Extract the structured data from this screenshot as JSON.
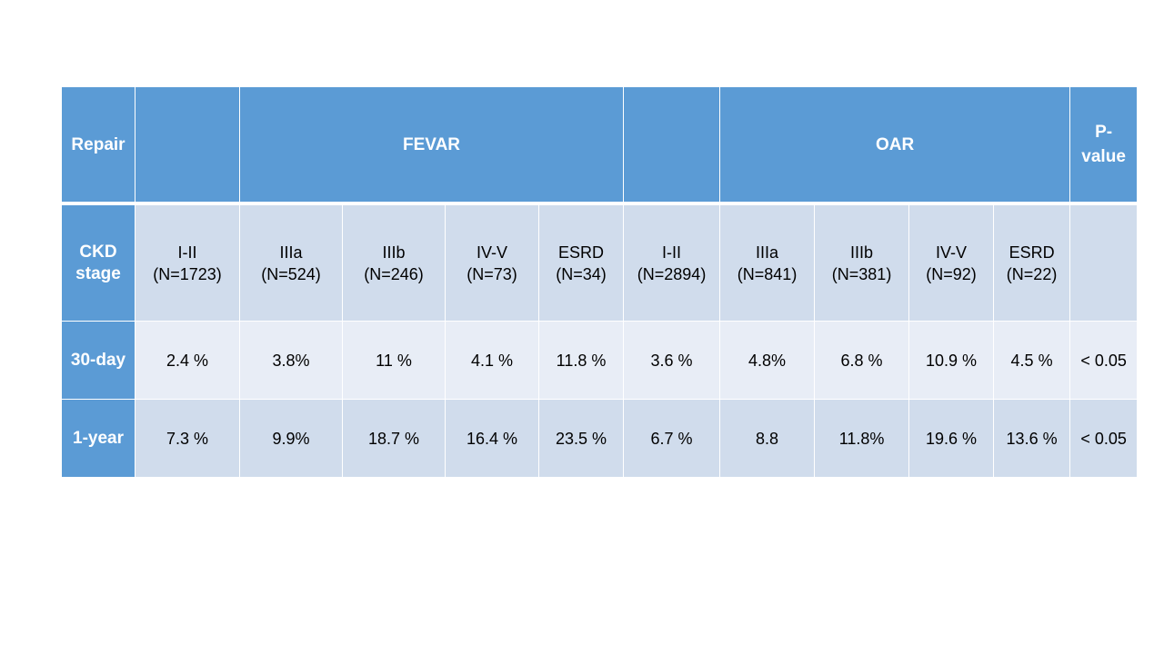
{
  "header": {
    "repair_label": "Repair",
    "group_fevar": "FEVAR",
    "group_oar": "OAR",
    "pvalue_line1": "P-",
    "pvalue_line2": "value"
  },
  "stage_row": {
    "label_line1": "CKD",
    "label_line2": "stage",
    "stages": [
      {
        "stage": "I-II",
        "n": "(N=1723)"
      },
      {
        "stage": "IIIa",
        "n": "(N=524)"
      },
      {
        "stage": "IIIb",
        "n": "(N=246)"
      },
      {
        "stage": "IV-V",
        "n": "(N=73)"
      },
      {
        "stage": "ESRD",
        "n": "(N=34)"
      },
      {
        "stage": "I-II",
        "n": "(N=2894)"
      },
      {
        "stage": "IIIa",
        "n": "(N=841)"
      },
      {
        "stage": "IIIb",
        "n": "(N=381)"
      },
      {
        "stage": "IV-V",
        "n": "(N=92)"
      },
      {
        "stage": "ESRD",
        "n": "(N=22)"
      }
    ]
  },
  "rows": [
    {
      "label": "30-day",
      "values": [
        "2.4 %",
        "3.8%",
        "11 %",
        "4.1 %",
        "11.8 %",
        "3.6 %",
        "4.8%",
        "6.8 %",
        "10.9 %",
        "4.5 %"
      ],
      "pvalue": "< 0.05"
    },
    {
      "label": "1-year",
      "values": [
        "7.3 %",
        "9.9%",
        "18.7 %",
        "16.4 %",
        "23.5 %",
        "6.7 %",
        "8.8",
        "11.8%",
        "19.6 %",
        "13.6 %"
      ],
      "pvalue": "< 0.05"
    }
  ]
}
